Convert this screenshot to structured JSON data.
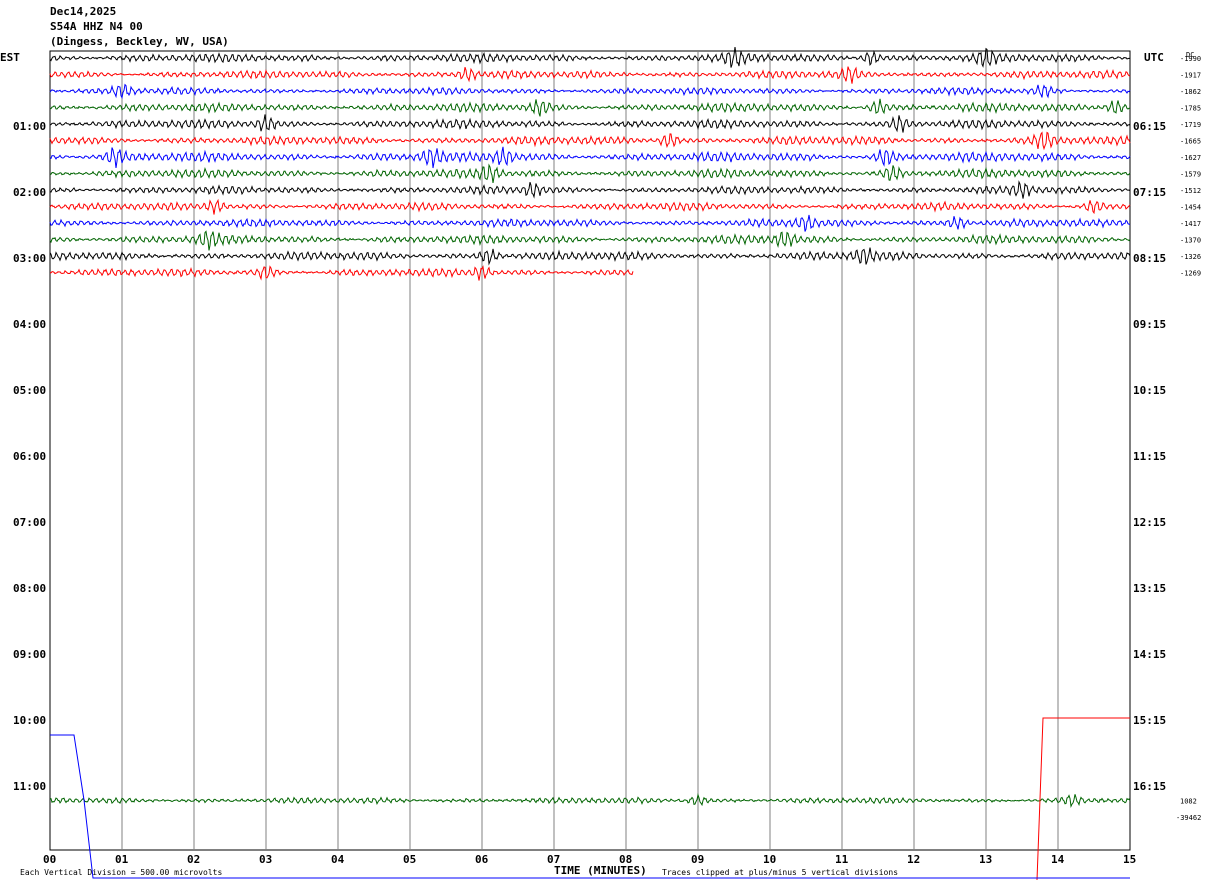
{
  "header": {
    "date": "Dec14,2025",
    "station": "S54A HHZ N4 00",
    "location": "(Dingess, Beckley, WV, USA)"
  },
  "axes": {
    "left_zone": "EST",
    "right_zone": "UTC",
    "dc_header": "DC",
    "xlabel": "TIME (MINUTES)",
    "left_labels": [
      "01:00",
      "02:00",
      "03:00",
      "04:00",
      "05:00",
      "06:00",
      "07:00",
      "08:00",
      "09:00",
      "10:00",
      "11:00"
    ],
    "right_labels": [
      "06:15",
      "07:15",
      "08:15",
      "09:15",
      "10:15",
      "11:15",
      "12:15",
      "13:15",
      "14:15",
      "15:15",
      "16:15"
    ],
    "x_ticks": [
      "00",
      "01",
      "02",
      "03",
      "04",
      "05",
      "06",
      "07",
      "08",
      "09",
      "10",
      "11",
      "12",
      "13",
      "14",
      "15"
    ]
  },
  "footer": {
    "scale_note": "Each Vertical Division =  500.00 microvolts",
    "clip_note": "Traces clipped at plus/minus 5 vertical divisions"
  },
  "chart_data": {
    "type": "line",
    "title": "S54A HHZ N4 00",
    "xlabel": "TIME (MINUTES)",
    "xlim": [
      0,
      15
    ],
    "line_minutes": 15,
    "colors": [
      "#000000",
      "#ff0000",
      "#0000ff",
      "#006400"
    ],
    "traces": [
      {
        "row": 0,
        "color": "#000000",
        "end_min": 15,
        "dc": "-1990",
        "amp": 0.9,
        "bursts": [
          9.5,
          11.4,
          13.0
        ]
      },
      {
        "row": 1,
        "color": "#ff0000",
        "end_min": 15,
        "dc": "-1917",
        "amp": 0.8,
        "bursts": [
          5.8,
          11.1
        ]
      },
      {
        "row": 2,
        "color": "#0000ff",
        "end_min": 15,
        "dc": "-1862",
        "amp": 0.7,
        "bursts": [
          1.0,
          13.8
        ]
      },
      {
        "row": 3,
        "color": "#006400",
        "end_min": 15,
        "dc": "-1785",
        "amp": 0.9,
        "bursts": [
          6.8,
          11.5,
          14.8
        ]
      },
      {
        "row": 4,
        "color": "#000000",
        "end_min": 15,
        "dc": "-1719",
        "amp": 0.9,
        "bursts": [
          3.0,
          11.8
        ]
      },
      {
        "row": 5,
        "color": "#ff0000",
        "end_min": 15,
        "dc": "-1665",
        "amp": 0.9,
        "bursts": [
          8.6,
          13.8
        ]
      },
      {
        "row": 6,
        "color": "#0000ff",
        "end_min": 15,
        "dc": "-1627",
        "amp": 1.0,
        "bursts": [
          0.9,
          5.3,
          6.3,
          11.6
        ]
      },
      {
        "row": 7,
        "color": "#006400",
        "end_min": 15,
        "dc": "-1579",
        "amp": 0.9,
        "bursts": [
          6.1,
          11.7
        ]
      },
      {
        "row": 8,
        "color": "#000000",
        "end_min": 15,
        "dc": "-1512",
        "amp": 0.8,
        "bursts": [
          6.7,
          13.5
        ]
      },
      {
        "row": 9,
        "color": "#ff0000",
        "end_min": 15,
        "dc": "-1454",
        "amp": 0.8,
        "bursts": [
          2.3,
          14.5
        ]
      },
      {
        "row": 10,
        "color": "#0000ff",
        "end_min": 15,
        "dc": "-1417",
        "amp": 0.8,
        "bursts": [
          10.5,
          12.6
        ]
      },
      {
        "row": 11,
        "color": "#006400",
        "end_min": 15,
        "dc": "-1370",
        "amp": 0.9,
        "bursts": [
          2.2,
          10.2
        ]
      },
      {
        "row": 12,
        "color": "#000000",
        "end_min": 15,
        "dc": "-1326",
        "amp": 0.9,
        "bursts": [
          6.1,
          11.3
        ]
      },
      {
        "row": 13,
        "color": "#ff0000",
        "end_min": 8.1,
        "dc": "-1269",
        "amp": 0.8,
        "bursts": [
          3.0,
          6.0
        ]
      },
      {
        "row": 45,
        "color": "#006400",
        "end_min": 15,
        "dc": "1082",
        "amp": 0.6,
        "bursts": [
          9.0,
          14.2
        ]
      }
    ],
    "clipped_step_traces": [
      {
        "color": "#ff0000",
        "dc": "-39462",
        "description": "step"
      },
      {
        "color": "#0000ff",
        "description": "step"
      }
    ]
  }
}
